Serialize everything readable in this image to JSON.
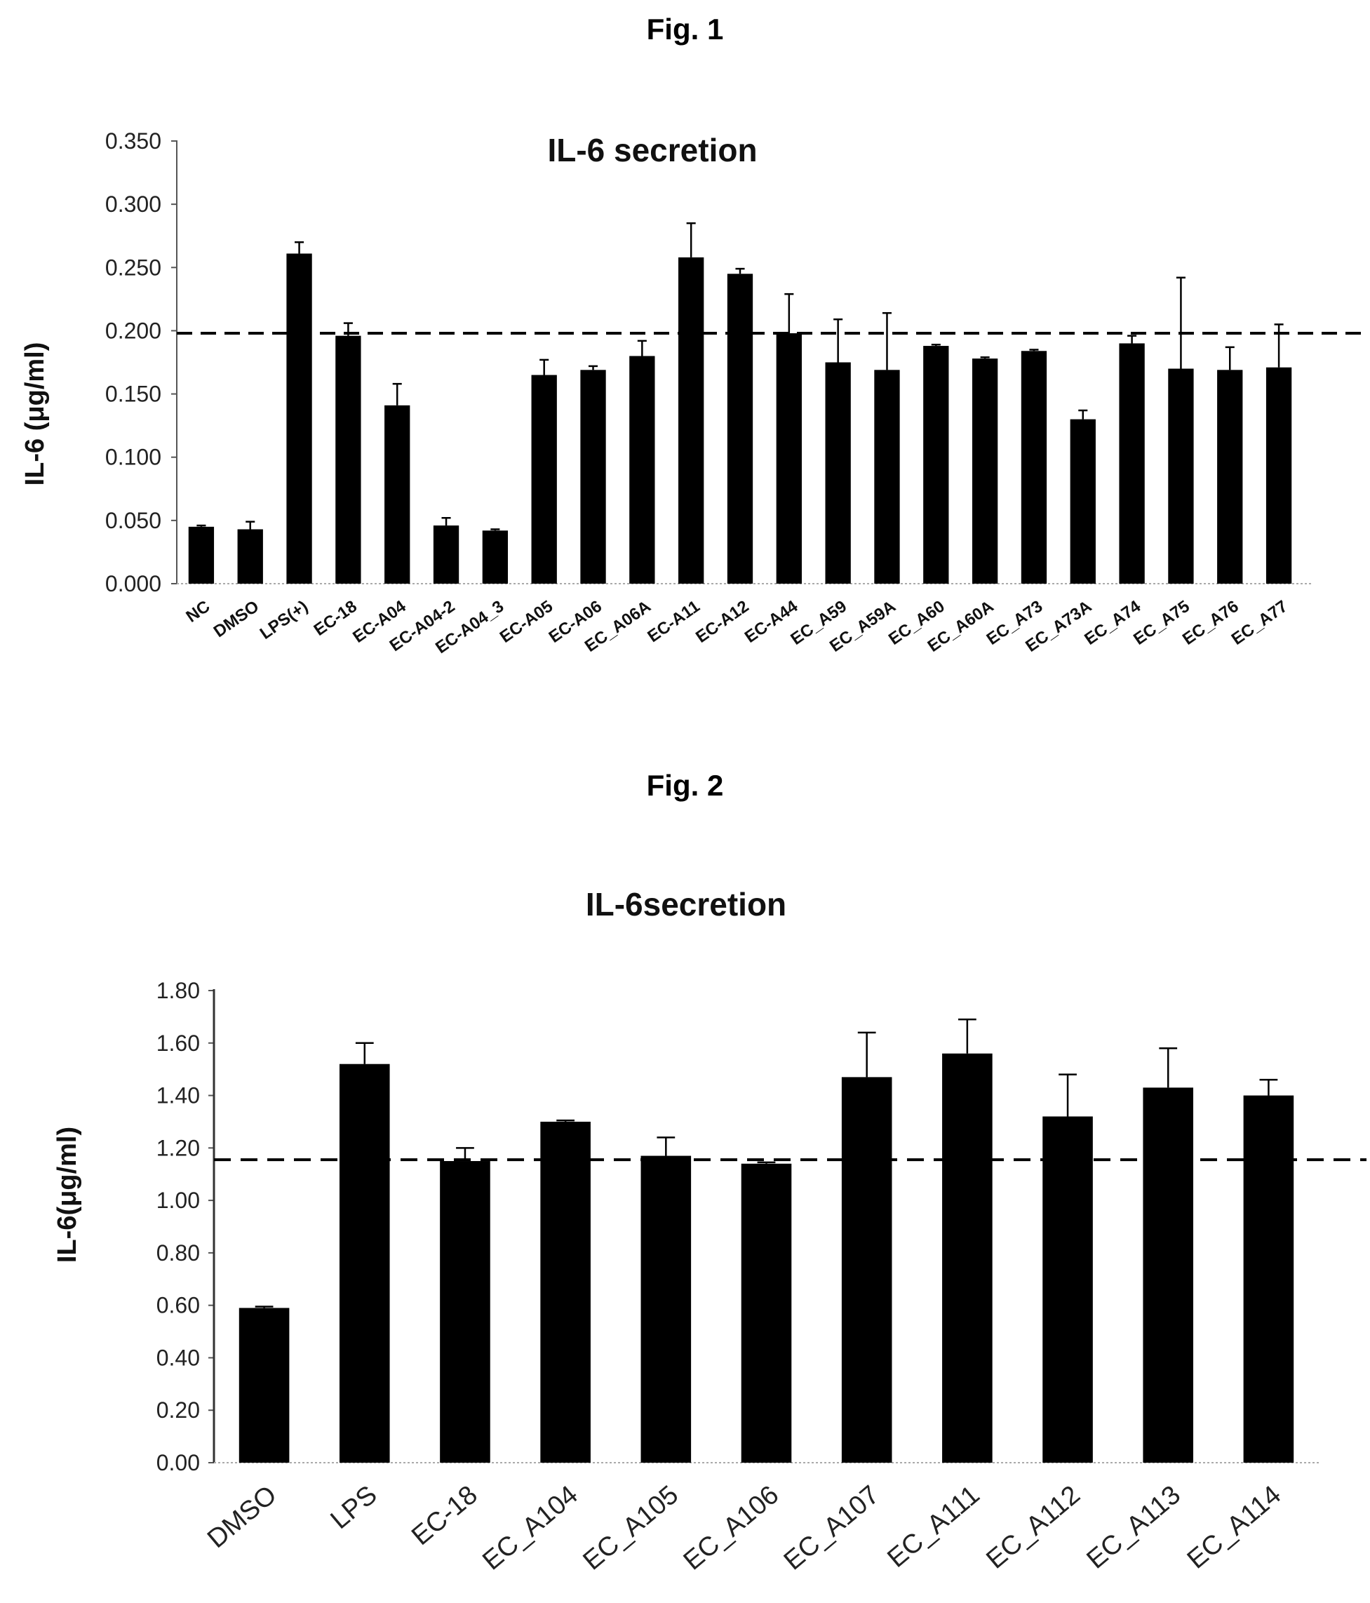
{
  "figures": [
    {
      "label": "Fig. 1"
    },
    {
      "label": "Fig. 2"
    }
  ],
  "chart_data": [
    {
      "type": "bar",
      "title": "IL-6 secretion",
      "ylabel": "IL-6 (μg/ml)",
      "xlabel": "",
      "ylim": [
        0,
        0.35
      ],
      "yticks": [
        "0.000",
        "0.050",
        "0.100",
        "0.150",
        "0.200",
        "0.250",
        "0.300",
        "0.350"
      ],
      "reference_line": 0.198,
      "grid": false,
      "categories": [
        "NC",
        "DMSO",
        "LPS(+)",
        "EC-18",
        "EC-A04",
        "EC-A04-2",
        "EC-A04_3",
        "EC-A05",
        "EC-A06",
        "EC_A06A",
        "EC-A11",
        "EC-A12",
        "EC-A44",
        "EC_A59",
        "EC_A59A",
        "EC_A60",
        "EC_A60A",
        "EC_A73",
        "EC_A73A",
        "EC_A74",
        "EC_A75",
        "EC_A76",
        "EC_A77"
      ],
      "values": [
        0.045,
        0.043,
        0.261,
        0.196,
        0.141,
        0.046,
        0.042,
        0.165,
        0.169,
        0.18,
        0.258,
        0.245,
        0.198,
        0.175,
        0.169,
        0.188,
        0.178,
        0.184,
        0.13,
        0.19,
        0.17,
        0.169,
        0.171
      ],
      "errors": [
        0.001,
        0.006,
        0.009,
        0.01,
        0.017,
        0.006,
        0.001,
        0.012,
        0.003,
        0.012,
        0.027,
        0.004,
        0.031,
        0.034,
        0.045,
        0.001,
        0.001,
        0.001,
        0.007,
        0.006,
        0.072,
        0.018,
        0.034
      ],
      "bar_color": "#000000"
    },
    {
      "type": "bar",
      "title": "IL-6secretion",
      "ylabel": "IL-6(μg/ml)",
      "xlabel": "",
      "ylim": [
        0,
        1.8
      ],
      "yticks": [
        "0.00",
        "0.20",
        "0.40",
        "0.60",
        "0.80",
        "1.00",
        "1.20",
        "1.40",
        "1.60",
        "1.80"
      ],
      "reference_line": 1.155,
      "grid": false,
      "categories": [
        "DMSO",
        "LPS",
        "EC-18",
        "EC_A104",
        "EC_A105",
        "EC_A106",
        "EC_A107",
        "EC_A111",
        "EC_A112",
        "EC_A113",
        "EC_A114"
      ],
      "values": [
        0.59,
        1.52,
        1.15,
        1.3,
        1.17,
        1.14,
        1.47,
        1.56,
        1.32,
        1.43,
        1.4
      ],
      "errors": [
        0.005,
        0.08,
        0.05,
        0.005,
        0.07,
        0.005,
        0.17,
        0.13,
        0.16,
        0.15,
        0.06
      ],
      "bar_color": "#000000"
    }
  ]
}
